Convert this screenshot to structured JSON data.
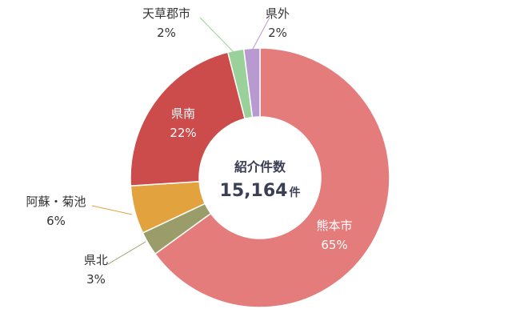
{
  "chart_data": {
    "type": "pie",
    "style": "donut",
    "center_title": "紹介件数",
    "center_value": "15,164",
    "center_unit": "件",
    "slices": [
      {
        "name": "熊本市",
        "value": 65,
        "label": "65%",
        "color": "#e47c7c"
      },
      {
        "name": "県北",
        "value": 3,
        "label": "3%",
        "color": "#9a9d6a"
      },
      {
        "name": "阿蘇・菊池",
        "value": 6,
        "label": "6%",
        "color": "#e2a23d"
      },
      {
        "name": "県南",
        "value": 22,
        "label": "22%",
        "color": "#cc4b4b"
      },
      {
        "name": "天草郡市",
        "value": 2,
        "label": "2%",
        "color": "#9ad09a"
      },
      {
        "name": "県外",
        "value": 2,
        "label": "2%",
        "color": "#b89ad0"
      }
    ]
  }
}
